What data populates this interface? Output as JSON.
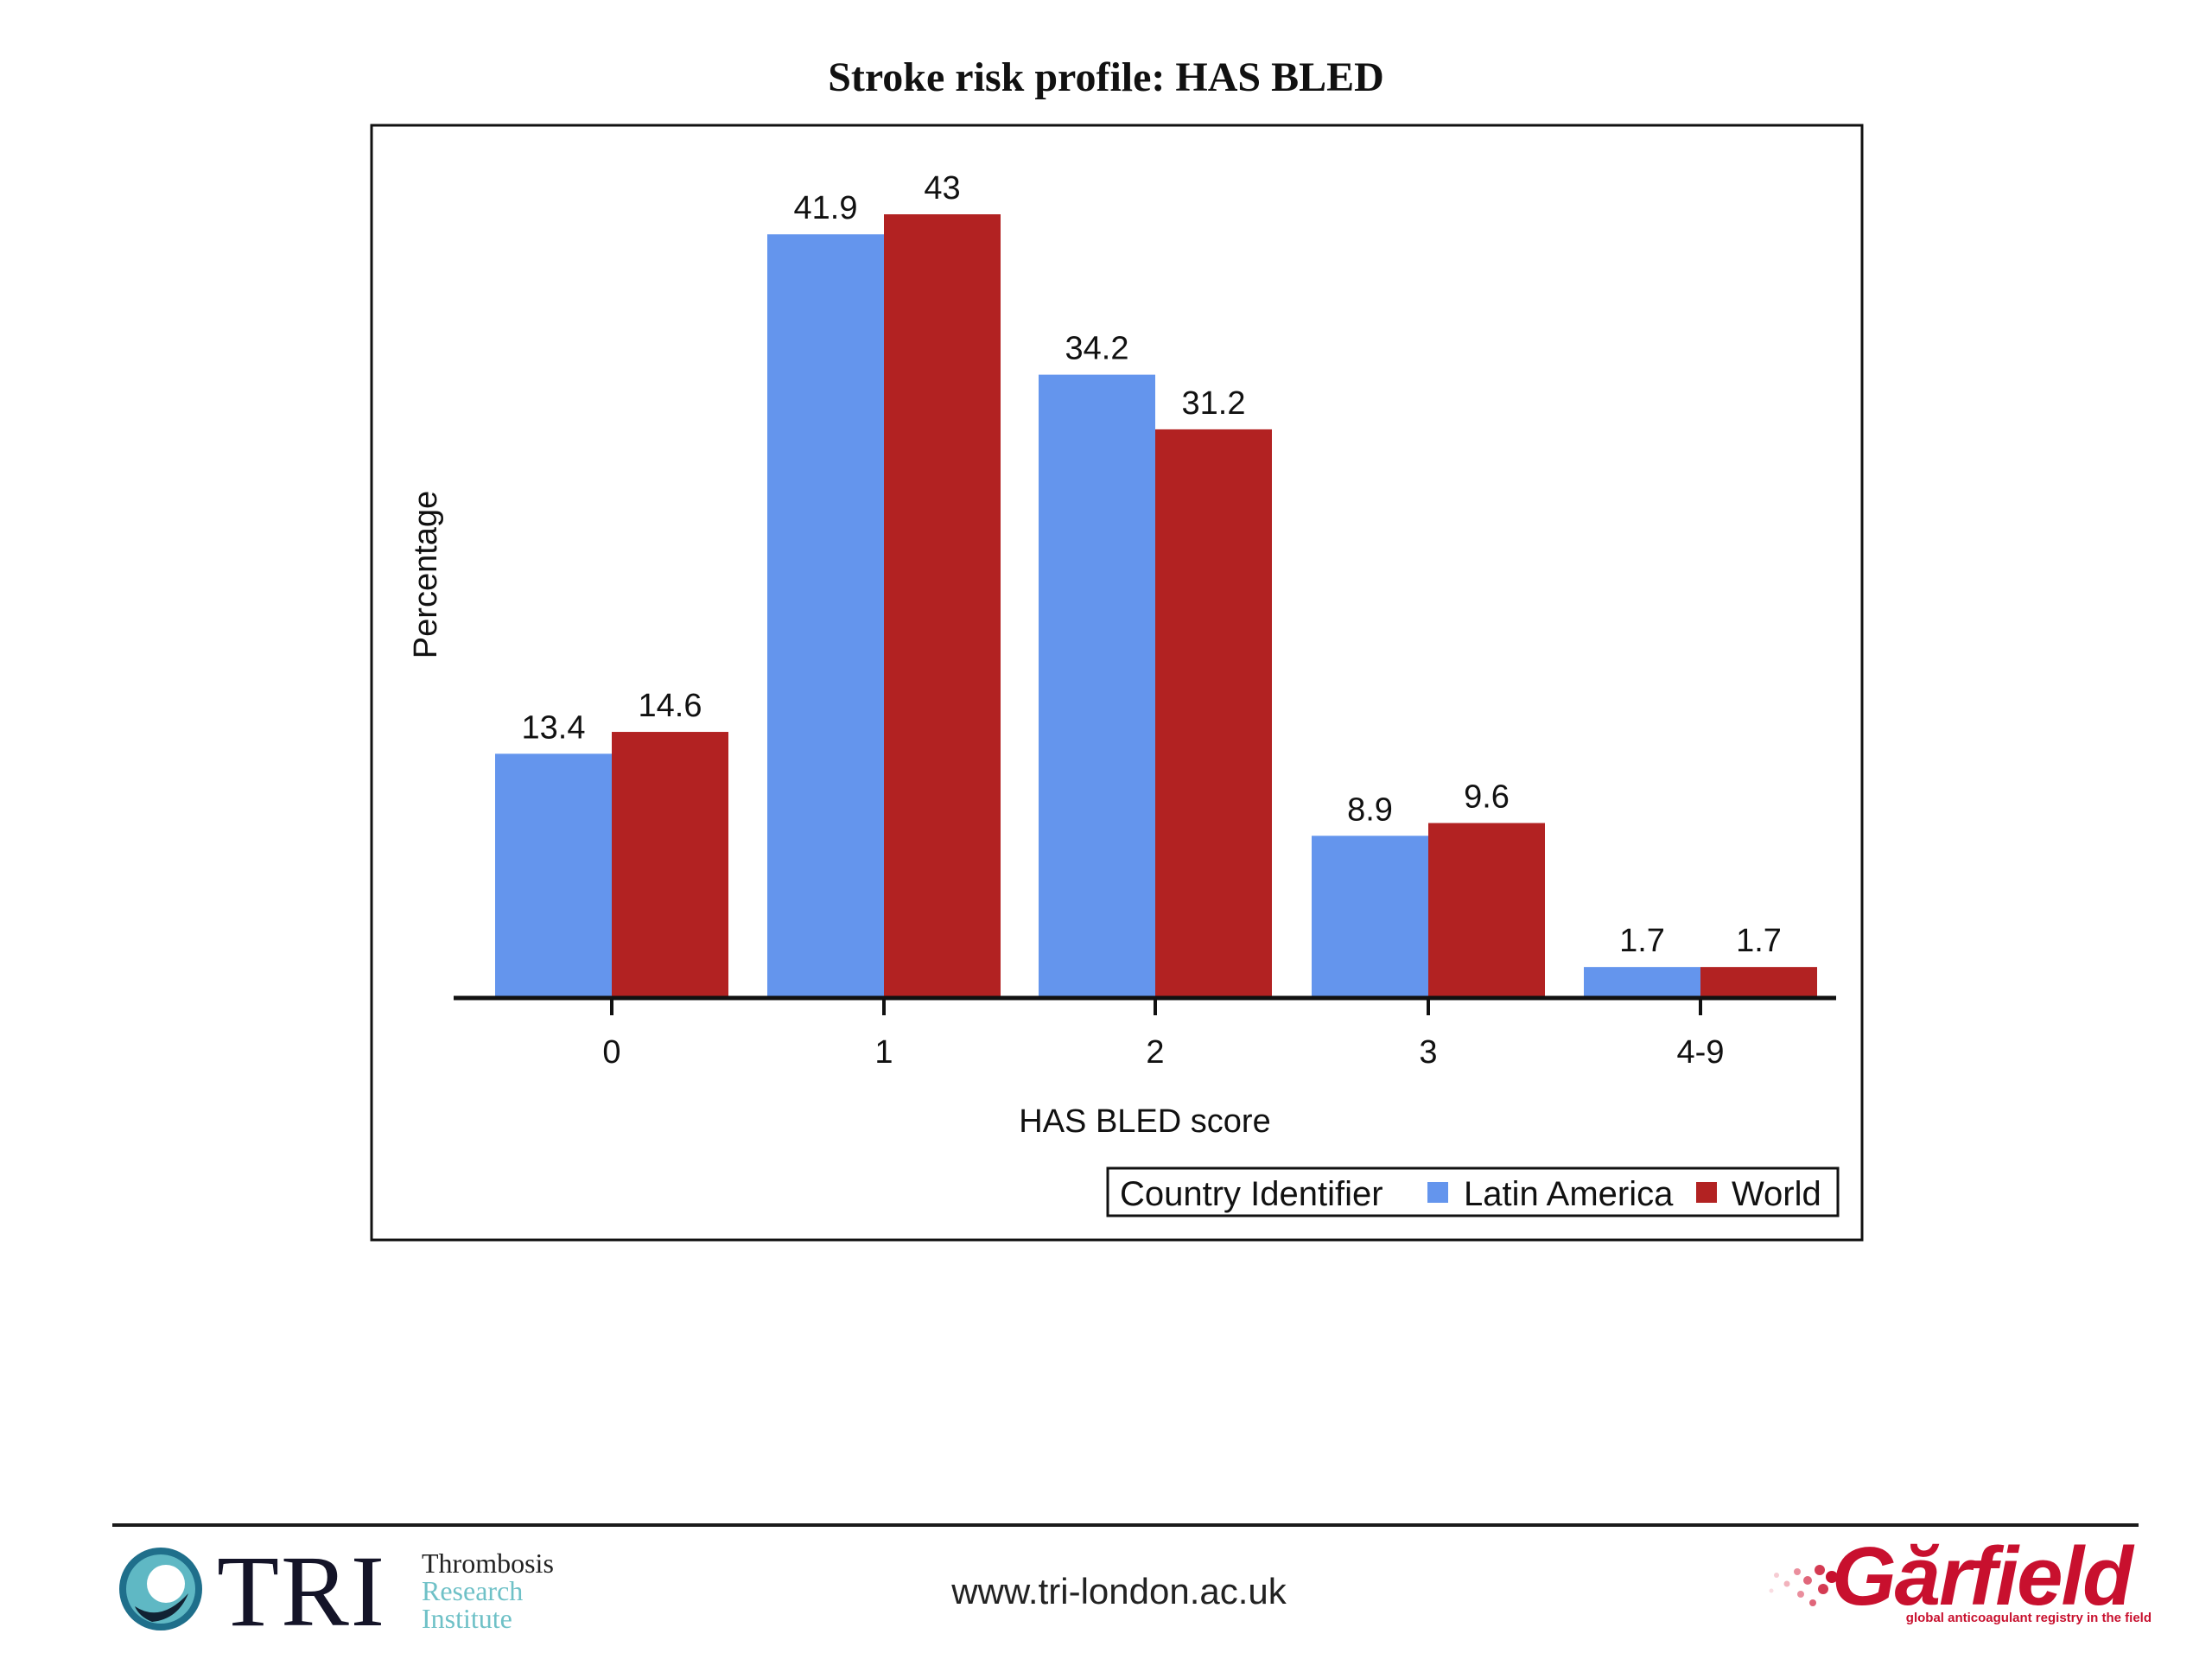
{
  "page": {
    "title": "Stroke risk profile: HAS BLED",
    "footer_url": "www.tri-london.ac.uk"
  },
  "logos": {
    "tri": {
      "word": "TRI",
      "line1": "Thrombosis",
      "line2": "Research",
      "line3": "Institute",
      "icon": "tri-circle-logo-icon"
    },
    "garfield": {
      "word": "Gărfield",
      "tagline": "global anticoagulant registry in the field",
      "icon": "garfield-dots-icon"
    }
  },
  "chart_data": {
    "type": "bar",
    "title": "Stroke risk profile: HAS BLED",
    "xlabel": "HAS BLED score",
    "ylabel": "Percentage",
    "categories": [
      "0",
      "1",
      "2",
      "3",
      "4-9"
    ],
    "series": [
      {
        "name": "Latin America",
        "color": "#6495ed",
        "values": [
          13.4,
          41.9,
          34.2,
          8.9,
          1.7
        ]
      },
      {
        "name": "World",
        "color": "#b22222",
        "values": [
          14.6,
          43,
          31.2,
          9.6,
          1.7
        ]
      }
    ],
    "ylim": [
      0,
      43
    ],
    "grid": false,
    "legend": {
      "title": "Country Identifier",
      "position": "bottom-right"
    }
  }
}
